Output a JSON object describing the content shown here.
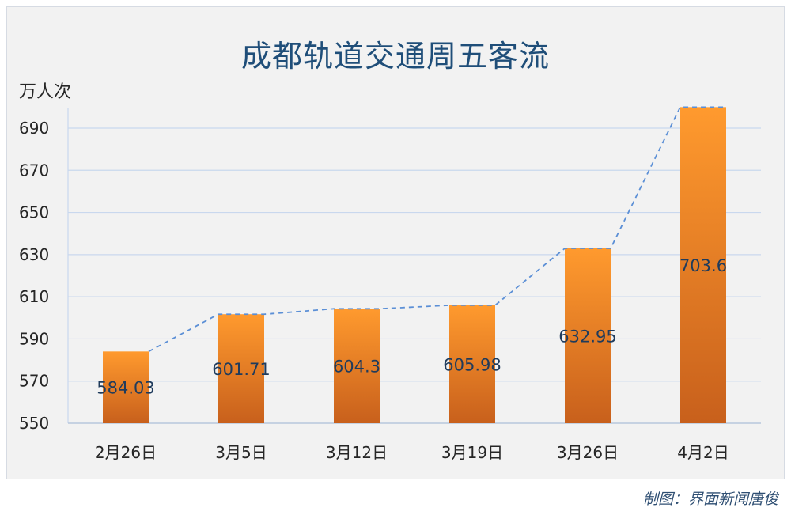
{
  "chart_data": {
    "type": "bar",
    "title": "成都轨道交通周五客流",
    "ylabel": "万人次",
    "categories": [
      "2月26日",
      "3月5日",
      "3月12日",
      "3月19日",
      "3月26日",
      "4月2日"
    ],
    "values": [
      584.03,
      601.71,
      604.3,
      605.98,
      632.95,
      703.6
    ],
    "value_labels": [
      "584.03",
      "601.71",
      "604.3",
      "605.98",
      "632.95",
      "703.6"
    ],
    "ylim": [
      550,
      700
    ],
    "yticks": [
      550,
      570,
      590,
      610,
      630,
      650,
      670,
      690
    ],
    "grid": true,
    "trend_line": "dashed",
    "colors": {
      "bar_top": "#ff9a2e",
      "bar_bottom": "#c8601c",
      "trend": "#5b8fd6",
      "grid": "#c9d8ee",
      "title": "#1f4e79"
    }
  },
  "credit": "制图：界面新闻唐俊"
}
